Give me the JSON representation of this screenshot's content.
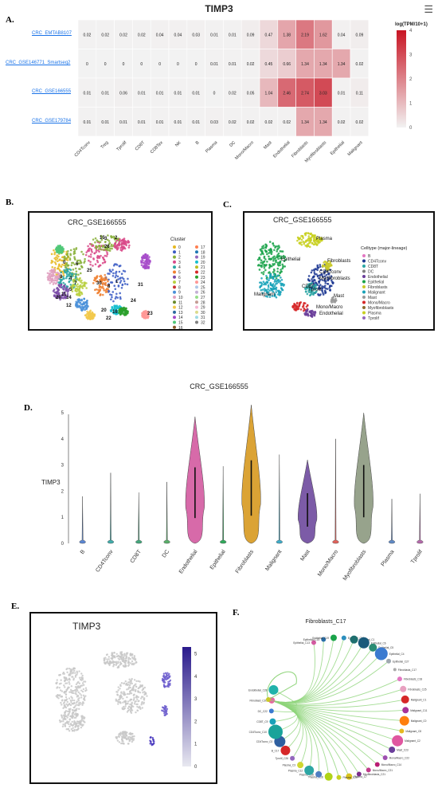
{
  "panel_labels": {
    "a": "A.",
    "b": "B.",
    "c": "C.",
    "d": "D.",
    "e": "E.",
    "f": "F."
  },
  "heatmap": {
    "title": "TIMP3",
    "legend_title": "log(TPM/10+1)",
    "legend_ticks": [
      4,
      3,
      2,
      1,
      0
    ],
    "datasets": [
      "CRC_EMTAB8107",
      "CRC_GSE146771_Smartseq2",
      "CRC_GSE166555",
      "CRC_GSE179784"
    ],
    "celltypes": [
      "CD4Tconv",
      "Treg",
      "Tprolif",
      "CD8T",
      "CD8Tex",
      "NK",
      "B",
      "Plasma",
      "DC",
      "Mono/Macro",
      "Mast",
      "Endothelial",
      "Fibroblasts",
      "Myofibroblasts",
      "Epithelial",
      "Malignant"
    ]
  },
  "chart_data": [
    {
      "type": "heatmap",
      "title": "TIMP3",
      "x": [
        "CD4Tconv",
        "Treg",
        "Tprolif",
        "CD8T",
        "CD8Tex",
        "NK",
        "B",
        "Plasma",
        "DC",
        "Mono/Macro",
        "Mast",
        "Endothelial",
        "Fibroblasts",
        "Myofibroblasts",
        "Epithelial",
        "Malignant"
      ],
      "y": [
        "CRC_EMTAB8107",
        "CRC_GSE146771_Smartseq2",
        "CRC_GSE166555",
        "CRC_GSE179784"
      ],
      "values": [
        [
          0.02,
          0.02,
          0.02,
          0.02,
          0.04,
          0.04,
          0.03,
          0.01,
          0.01,
          0.09,
          0.47,
          1.38,
          2.19,
          1.62,
          0.04,
          0.09
        ],
        [
          0,
          0,
          0,
          0,
          0,
          0,
          0,
          0.01,
          0.01,
          0.02,
          0.45,
          0.66,
          1.34,
          1.34,
          1.34,
          0.02
        ],
        [
          0.01,
          0.01,
          0.06,
          0.01,
          0.01,
          0.01,
          0.01,
          0,
          0.02,
          0.05,
          1.04,
          2.46,
          2.74,
          3.03,
          0.01,
          0.11
        ],
        [
          0.01,
          0.01,
          0.01,
          0.01,
          0.01,
          0.01,
          0.01,
          0.03,
          0.02,
          0.02,
          0.02,
          0.02,
          1.34,
          1.34,
          0.02,
          0.02
        ]
      ],
      "colorbar_label": "log(TPM/10+1)",
      "zlim": [
        0,
        4
      ]
    },
    {
      "type": "scatter",
      "title": "CRC_GSE166555",
      "legend_title": "Cluster",
      "legend_entries": [
        "0",
        "1",
        "2",
        "3",
        "4",
        "5",
        "6",
        "7",
        "8",
        "9",
        "10",
        "11",
        "12",
        "13",
        "14",
        "15",
        "16",
        "17",
        "18",
        "19",
        "20",
        "21",
        "22",
        "23",
        "24",
        "25",
        "26",
        "27",
        "28",
        "29",
        "30",
        "31",
        "32"
      ]
    },
    {
      "type": "scatter",
      "title": "CRC_GSE166555",
      "legend_title": "Celltype (major-lineage)",
      "legend_entries": [
        "B",
        "CD4Tconv",
        "CD8T",
        "DC",
        "Endothelial",
        "Epithelial",
        "Fibroblasts",
        "Malignant",
        "Mast",
        "Mono/Macro",
        "Myofibroblasts",
        "Plasma",
        "Tprolif"
      ]
    },
    {
      "type": "violin",
      "title": "CRC_GSE166555",
      "ylabel": "TIMP3",
      "ylim": [
        0,
        5
      ],
      "yticks": [
        0,
        1,
        2,
        3,
        4,
        5
      ],
      "categories": [
        "B",
        "CD4Tconv",
        "CD8T",
        "DC",
        "Endothelial",
        "Epithelial",
        "Fibroblasts",
        "Malignant",
        "Mast",
        "Mono/Macro",
        "Myofibroblasts",
        "Plasma",
        "Tprolif"
      ],
      "max_values": [
        1.8,
        2.7,
        1.95,
        2.35,
        4.85,
        2.95,
        5.3,
        3.4,
        3.2,
        4.0,
        5.0,
        1.7,
        1.9
      ]
    },
    {
      "type": "scatter",
      "title": "TIMP3",
      "colorbar_ticks": [
        5,
        4,
        3,
        2,
        1,
        0
      ]
    },
    {
      "type": "network",
      "title": "Fibroblasts_C17",
      "nodes": [
        "Epithelial_C13",
        "Epithelial_C15",
        "Epithelial_C19",
        "Epithelial_C16",
        "Epithelial_C1",
        "Epithelial_C6",
        "Epithelial_C5",
        "Epithelial_C4",
        "Epithelial_C27",
        "Fibroblasts_C17",
        "Fibroblasts_C18",
        "Fibroblasts_C25",
        "Malignant_C1",
        "Malignant_C11",
        "Malignant_C0",
        "Malignant_C8",
        "Malignant_C2",
        "Mast_C23",
        "Mono/Macro_C22",
        "Mono/Macro_C14",
        "Mono/Macro_C21",
        "Myofibroblasts_C21",
        "Plasma_C7",
        "Plasma_C20",
        "Plasma_C28",
        "Plasma_C30",
        "Plasma_C12",
        "Plasma_C3",
        "Tprolif_C26",
        "B_C17",
        "CD4Tconv_C0",
        "CD4Tconv_C10",
        "CD8T_C9",
        "DC_C22",
        "Fibroblast_C20",
        "Endothelial_C28"
      ]
    }
  ]
}
